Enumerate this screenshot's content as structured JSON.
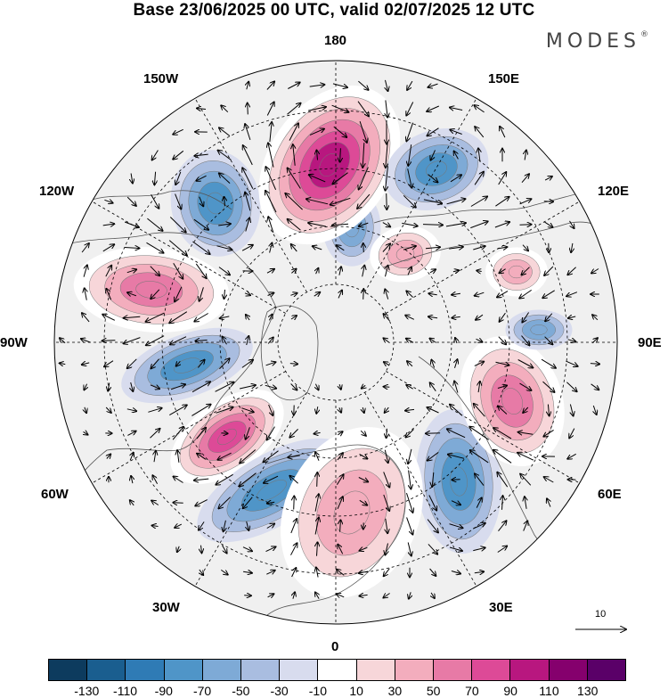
{
  "header": {
    "title": "Base 23/06/2025 00 UTC, valid 02/07/2025 12 UTC",
    "brand": "MODES",
    "brand_mark": "®"
  },
  "map": {
    "projection": "polar-stereographic-north",
    "longitude_labels": [
      "180",
      "150E",
      "120E",
      "90E",
      "60E",
      "30E",
      "0",
      "30W",
      "60W",
      "90W",
      "120W",
      "150W"
    ],
    "anomaly_centers": [
      {
        "sign": "positive",
        "level": 90
      },
      {
        "sign": "negative",
        "level": -70
      },
      {
        "sign": "positive",
        "level": 70
      },
      {
        "sign": "negative",
        "level": -70
      },
      {
        "sign": "negative",
        "level": -50
      },
      {
        "sign": "positive",
        "level": 110
      },
      {
        "sign": "negative",
        "level": -70
      },
      {
        "sign": "positive",
        "level": 50
      },
      {
        "sign": "negative",
        "level": -70
      },
      {
        "sign": "positive",
        "level": 70
      },
      {
        "sign": "negative",
        "level": -70
      },
      {
        "sign": "positive",
        "level": 50
      },
      {
        "sign": "positive",
        "level": 50
      },
      {
        "sign": "negative",
        "level": -50
      }
    ]
  },
  "vector_key": {
    "label": "10"
  },
  "colorbar": {
    "colors": [
      "#0d3b5e",
      "#1a5e8f",
      "#2f7bb5",
      "#4f95c8",
      "#7eaad6",
      "#a9bde0",
      "#d8dcee",
      "#ffffff",
      "#f7d6d9",
      "#f3adbd",
      "#e77aa6",
      "#dd4a97",
      "#b8177f",
      "#85006d",
      "#5a0068"
    ],
    "labels": [
      "-130",
      "-110",
      "-90",
      "-70",
      "-50",
      "-30",
      "-10",
      "10",
      "30",
      "50",
      "70",
      "90",
      "110",
      "130"
    ]
  }
}
